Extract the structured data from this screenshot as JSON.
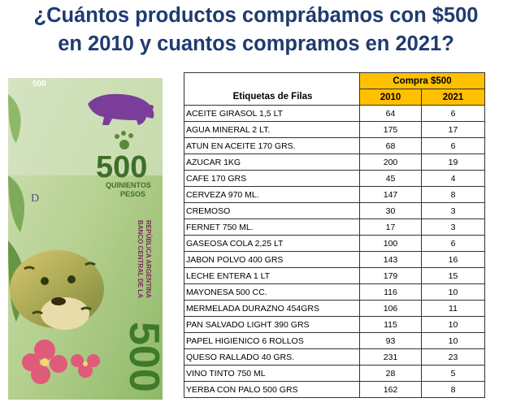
{
  "title": {
    "line1": "¿Cuántos productos comprábamos con $500",
    "line2": "en 2010 y cuantos compramos en 2021?"
  },
  "banknote": {
    "value": "500",
    "words": "QUINIENTOS",
    "currency": "PESOS",
    "letter": "D",
    "bank": "BANCO CENTRAL DE LA",
    "country": "REPÚBLICA ARGENTINA"
  },
  "table": {
    "row_label_header": "Etiquetas de Filas",
    "group_header": "Compra $500",
    "year_headers": [
      "2010",
      "2021"
    ],
    "rows": [
      {
        "label": "ACEITE GIRASOL 1,5 LT",
        "v2010": "64",
        "v2021": "6"
      },
      {
        "label": "AGUA MINERAL 2  LT.",
        "v2010": "175",
        "v2021": "17"
      },
      {
        "label": "ATUN EN ACEITE 170 GRS.",
        "v2010": "68",
        "v2021": "6"
      },
      {
        "label": "AZUCAR 1KG",
        "v2010": "200",
        "v2021": "19"
      },
      {
        "label": "CAFE 170 GRS",
        "v2010": "45",
        "v2021": "4"
      },
      {
        "label": "CERVEZA 970 ML.",
        "v2010": "147",
        "v2021": "8"
      },
      {
        "label": "CREMOSO",
        "v2010": "30",
        "v2021": "3"
      },
      {
        "label": "FERNET 750 ML.",
        "v2010": "17",
        "v2021": "3"
      },
      {
        "label": "GASEOSA COLA 2,25 LT",
        "v2010": "100",
        "v2021": "6"
      },
      {
        "label": "JABON POLVO 400 GRS",
        "v2010": "143",
        "v2021": "16"
      },
      {
        "label": "LECHE ENTERA 1 LT",
        "v2010": "179",
        "v2021": "15"
      },
      {
        "label": "MAYONESA 500 CC.",
        "v2010": "116",
        "v2021": "10"
      },
      {
        "label": "MERMELADA DURAZNO 454GRS",
        "v2010": "106",
        "v2021": "11"
      },
      {
        "label": "PAN SALVADO LIGHT 390 GRS",
        "v2010": "115",
        "v2021": "10"
      },
      {
        "label": "PAPEL HIGIENICO 6 ROLLOS",
        "v2010": "93",
        "v2021": "10"
      },
      {
        "label": "QUESO RALLADO 40 GRS.",
        "v2010": "231",
        "v2021": "23"
      },
      {
        "label": "VINO TINTO 750 ML",
        "v2010": "28",
        "v2021": "5"
      },
      {
        "label": "YERBA CON PALO 500 GRS",
        "v2010": "162",
        "v2021": "8"
      }
    ]
  },
  "colors": {
    "title": "#1f3b70",
    "header_fill": "#ffc000",
    "note_green": "#6fae3c"
  }
}
